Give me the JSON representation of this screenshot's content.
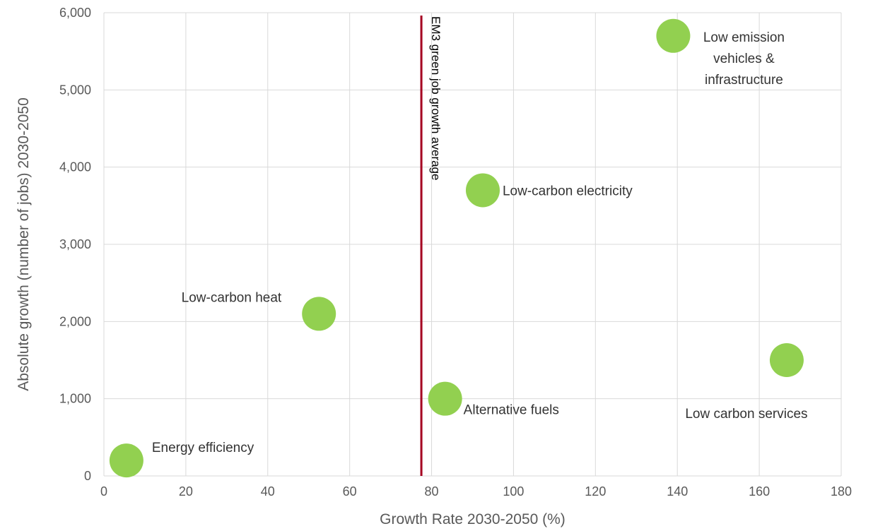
{
  "chart_data": {
    "type": "scatter",
    "title": "",
    "xlabel": "Growth Rate 2030-2050 (%)",
    "ylabel": "Absolute growth (number of jobs) 2030-2050",
    "xlim": [
      0,
      180
    ],
    "ylim": [
      0,
      6000
    ],
    "x_ticks": [
      0,
      20,
      40,
      60,
      80,
      100,
      120,
      140,
      160,
      180
    ],
    "y_ticks": [
      0,
      1000,
      2000,
      3000,
      4000,
      5000,
      6000
    ],
    "y_tick_labels": [
      "0",
      "1,000",
      "2,000",
      "3,000",
      "4,000",
      "5,000",
      "6,000"
    ],
    "grid": true,
    "marker_color": "#92d050",
    "points": [
      {
        "label": "Energy efficiency",
        "x": 5.5,
        "y": 200
      },
      {
        "label": "Low-carbon heat",
        "x": 52.5,
        "y": 2100
      },
      {
        "label": "Alternative fuels",
        "x": 83.3,
        "y": 1000
      },
      {
        "label": "Low-carbon electricity",
        "x": 92.5,
        "y": 3700
      },
      {
        "label": "Low emission vehicles & infrastructure",
        "x": 139,
        "y": 5700
      },
      {
        "label": "Low carbon services",
        "x": 166.7,
        "y": 1500
      }
    ],
    "reference_line": {
      "label": "EM3 green job growth average",
      "x": 77.5,
      "color": "#a50021"
    }
  }
}
